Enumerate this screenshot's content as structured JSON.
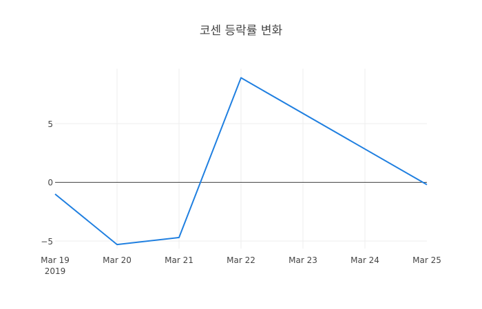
{
  "chart_data": {
    "type": "line",
    "title": "코센 등락률 변화",
    "xlabel": "",
    "ylabel": "",
    "x": [
      "2019-03-19",
      "2019-03-20",
      "2019-03-21",
      "2019-03-22",
      "2019-03-25"
    ],
    "series": [
      {
        "name": "등락률",
        "color": "#1f7fe0",
        "values": [
          -1.0,
          -5.3,
          -4.7,
          8.9,
          -0.2
        ]
      }
    ],
    "x_tick_labels": [
      "Mar 19",
      "Mar 20",
      "Mar 21",
      "Mar 22",
      "Mar 23",
      "Mar 24",
      "Mar 25"
    ],
    "x_tick_year": "2019",
    "y_tick_labels": [
      "−5",
      "0",
      "5"
    ],
    "y_ticks": [
      -5,
      0,
      5
    ],
    "ylim": [
      -5.9,
      9.6
    ],
    "grid": true,
    "legend": "none"
  }
}
